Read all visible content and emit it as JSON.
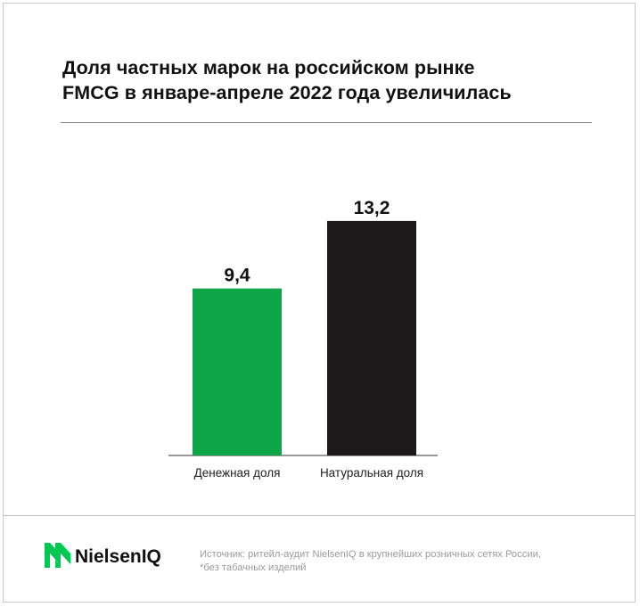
{
  "title": {
    "line1": "Доля частных марок на российском рынке",
    "line2": "FMCG в январе-апреле 2022 года увеличилась"
  },
  "chart_data": {
    "type": "bar",
    "categories": [
      "Денежная доля",
      "Натуральная доля"
    ],
    "values": [
      9.4,
      13.2
    ],
    "value_labels": [
      "9,4",
      "13,2"
    ],
    "colors": [
      "#0ea448",
      "#1c1a1a"
    ],
    "title": "Доля частных марок на российском рынке FMCG в январе-апреле 2022 года увеличилась",
    "xlabel": "",
    "ylabel": "",
    "ylim": [
      0,
      14.5
    ],
    "grid": false,
    "legend": "none"
  },
  "logo": {
    "text": "NielsenIQ",
    "icon": "nielseniq-logo-icon",
    "color": "#00c853"
  },
  "source": {
    "line1": "Источник: ритейл-аудит NielsenIQ в крупнейших розничных сетях России,",
    "line2": "*без табачных изделий"
  }
}
